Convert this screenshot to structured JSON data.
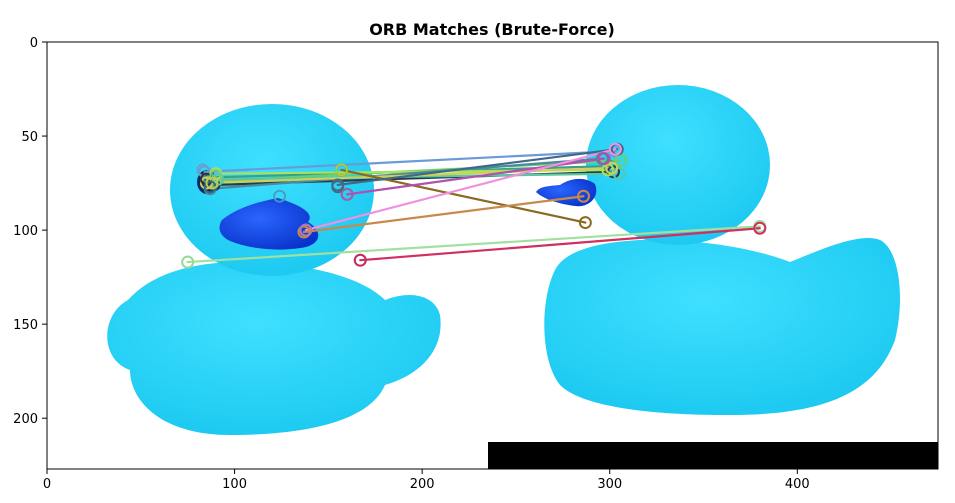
{
  "chart_data": {
    "type": "scatter",
    "title": "ORB Matches (Brute-Force)",
    "xlabel": "",
    "ylabel": "",
    "xlim": [
      0,
      475
    ],
    "ylim": [
      227,
      0
    ],
    "x_ticks": [
      0,
      100,
      200,
      300,
      400
    ],
    "y_ticks": [
      0,
      50,
      100,
      150,
      200
    ],
    "x_tick_labels": [
      "0",
      "100",
      "200",
      "300",
      "400"
    ],
    "y_tick_labels": [
      "0",
      "50",
      "100",
      "150",
      "200"
    ],
    "grid": false,
    "legend": "none",
    "image": {
      "description_left": "blue rubber duck",
      "description_right": "blue rubber duck",
      "split_x": 237,
      "duck_color": "#22d3f5",
      "beak_color": "#0a3be0",
      "black_bar": {
        "x0": 235,
        "x1": 475,
        "y0": 212,
        "y1": 227
      }
    },
    "keypoints_left": [
      {
        "x": 83,
        "y": 68,
        "color": "#6aa0c8"
      },
      {
        "x": 85,
        "y": 73,
        "color": "#333333"
      },
      {
        "x": 87,
        "y": 77,
        "color": "#2a6a8a"
      },
      {
        "x": 90,
        "y": 71,
        "color": "#7ad07a"
      },
      {
        "x": 88,
        "y": 75,
        "color": "#c8c84a"
      },
      {
        "x": 124,
        "y": 82,
        "color": "#4a9aba"
      },
      {
        "x": 155,
        "y": 77,
        "color": "#4a6a7a"
      },
      {
        "x": 157,
        "y": 68,
        "color": "#b0d040"
      },
      {
        "x": 160,
        "y": 81,
        "color": "#a060a0"
      },
      {
        "x": 138,
        "y": 100,
        "color": "#b07ab0"
      },
      {
        "x": 75,
        "y": 117,
        "color": "#9ad89a"
      },
      {
        "x": 167,
        "y": 116,
        "color": "#c03060"
      }
    ],
    "matches": [
      {
        "x1": 84,
        "y1": 69,
        "x2": 303,
        "y2": 58,
        "color": "#6a9ad8"
      },
      {
        "x1": 86,
        "y1": 72,
        "x2": 300,
        "y2": 66,
        "color": "#3aa08a"
      },
      {
        "x1": 88,
        "y1": 74,
        "x2": 306,
        "y2": 63,
        "color": "#6ad06a"
      },
      {
        "x1": 89,
        "y1": 76,
        "x2": 302,
        "y2": 69,
        "color": "#2a3a4a"
      },
      {
        "x1": 90,
        "y1": 70,
        "x2": 299,
        "y2": 68,
        "color": "#a8e060"
      },
      {
        "x1": 87,
        "y1": 78,
        "x2": 296,
        "y2": 62,
        "color": "#4a8a9a"
      },
      {
        "x1": 91,
        "y1": 73,
        "x2": 305,
        "y2": 70,
        "color": "#58c8a0"
      },
      {
        "x1": 85,
        "y1": 75,
        "x2": 301,
        "y2": 67,
        "color": "#d0d058"
      },
      {
        "x1": 157,
        "y1": 68,
        "x2": 287,
        "y2": 96,
        "color": "#8a6a20"
      },
      {
        "x1": 160,
        "y1": 81,
        "x2": 297,
        "y2": 62,
        "color": "#b050b0"
      },
      {
        "x1": 155,
        "y1": 76,
        "x2": 304,
        "y2": 57,
        "color": "#406888"
      },
      {
        "x1": 138,
        "y1": 100,
        "x2": 303,
        "y2": 57,
        "color": "#f090e0"
      },
      {
        "x1": 137,
        "y1": 101,
        "x2": 286,
        "y2": 82,
        "color": "#c88a4a"
      },
      {
        "x1": 75,
        "y1": 117,
        "x2": 380,
        "y2": 98,
        "color": "#a0e0a0"
      },
      {
        "x1": 167,
        "y1": 116,
        "x2": 380,
        "y2": 99,
        "color": "#d03060"
      }
    ]
  }
}
